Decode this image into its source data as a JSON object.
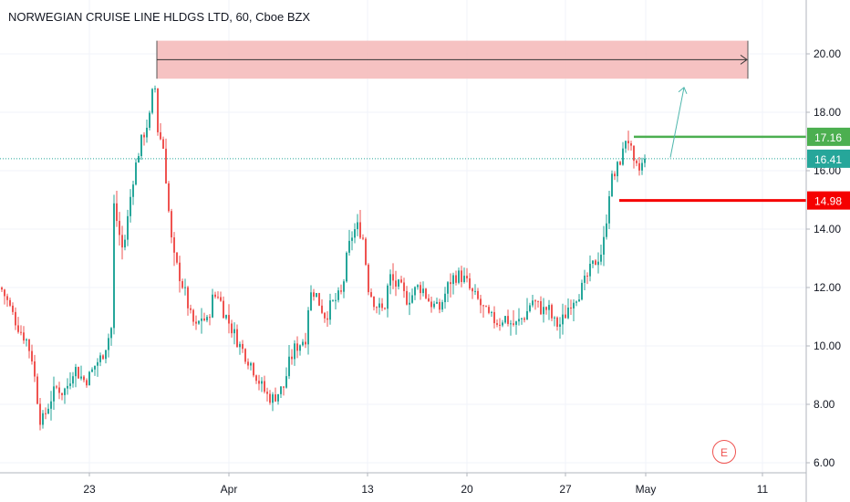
{
  "chart_data": {
    "type": "candlestick",
    "title": "NORWEGIAN CRUISE LINE HLDGS LTD, 60, Cboe BZX",
    "ylim": [
      5.8,
      21.2
    ],
    "y_ticks": [
      "6.00",
      "8.00",
      "10.00",
      "12.00",
      "14.00",
      "16.00",
      "18.00",
      "20.00"
    ],
    "x_ticks": [
      "23",
      "Apr",
      "13",
      "20",
      "27",
      "May",
      "11"
    ],
    "last_price": 16.41,
    "price_levels": [
      {
        "label": "17.16",
        "value": 17.16,
        "color": "#4caf50"
      },
      {
        "label": "14.98",
        "value": 14.98,
        "color": "#f50000"
      }
    ],
    "resistance_zone": {
      "low": 19.15,
      "high": 20.45
    },
    "projection_arrow_target": 18.85,
    "earnings_marker": "E",
    "colors": {
      "up": "#26a69a",
      "down": "#ef5350",
      "zone": "#f4b7b7",
      "last_price": "#26a69a"
    },
    "price_path": [
      [
        0,
        12.0
      ],
      [
        6,
        11.6
      ],
      [
        14,
        11.0
      ],
      [
        20,
        10.6
      ],
      [
        28,
        10.2
      ],
      [
        34,
        9.6
      ],
      [
        40,
        8.2
      ],
      [
        44,
        7.3
      ],
      [
        50,
        7.8
      ],
      [
        56,
        8.3
      ],
      [
        62,
        8.6
      ],
      [
        68,
        8.4
      ],
      [
        74,
        8.7
      ],
      [
        80,
        9.3
      ],
      [
        86,
        9.0
      ],
      [
        92,
        8.8
      ],
      [
        98,
        9.0
      ],
      [
        104,
        9.4
      ],
      [
        110,
        9.6
      ],
      [
        116,
        10.1
      ],
      [
        121,
        10.6
      ],
      [
        124,
        14.8
      ],
      [
        130,
        13.8
      ],
      [
        134,
        13.2
      ],
      [
        140,
        14.6
      ],
      [
        144,
        15.6
      ],
      [
        148,
        16.2
      ],
      [
        152,
        16.8
      ],
      [
        158,
        17.4
      ],
      [
        164,
        17.9
      ],
      [
        168,
        19.3
      ],
      [
        172,
        17.4
      ],
      [
        178,
        16.8
      ],
      [
        182,
        15.4
      ],
      [
        186,
        13.8
      ],
      [
        190,
        13.0
      ],
      [
        196,
        12.4
      ],
      [
        202,
        11.8
      ],
      [
        208,
        11.0
      ],
      [
        214,
        10.6
      ],
      [
        220,
        11.0
      ],
      [
        226,
        10.8
      ],
      [
        232,
        11.6
      ],
      [
        238,
        11.8
      ],
      [
        244,
        11.2
      ],
      [
        250,
        10.8
      ],
      [
        256,
        10.4
      ],
      [
        262,
        10.0
      ],
      [
        268,
        9.7
      ],
      [
        274,
        9.4
      ],
      [
        280,
        9.0
      ],
      [
        286,
        8.6
      ],
      [
        292,
        8.3
      ],
      [
        298,
        8.2
      ],
      [
        304,
        8.4
      ],
      [
        310,
        8.6
      ],
      [
        316,
        9.4
      ],
      [
        322,
        9.9
      ],
      [
        328,
        10.1
      ],
      [
        334,
        10.3
      ],
      [
        338,
        11.7
      ],
      [
        344,
        11.9
      ],
      [
        350,
        11.4
      ],
      [
        356,
        11.0
      ],
      [
        362,
        11.4
      ],
      [
        368,
        11.6
      ],
      [
        374,
        11.8
      ],
      [
        380,
        13.2
      ],
      [
        386,
        13.9
      ],
      [
        392,
        14.1
      ],
      [
        398,
        13.6
      ],
      [
        402,
        12.1
      ],
      [
        408,
        11.6
      ],
      [
        414,
        11.3
      ],
      [
        420,
        11.2
      ],
      [
        426,
        12.4
      ],
      [
        432,
        12.1
      ],
      [
        438,
        12.0
      ],
      [
        444,
        11.6
      ],
      [
        450,
        11.7
      ],
      [
        456,
        12.0
      ],
      [
        462,
        12.0
      ],
      [
        468,
        11.6
      ],
      [
        474,
        11.4
      ],
      [
        480,
        11.2
      ],
      [
        486,
        11.7
      ],
      [
        492,
        12.2
      ],
      [
        498,
        12.4
      ],
      [
        504,
        12.4
      ],
      [
        510,
        12.2
      ],
      [
        516,
        11.8
      ],
      [
        522,
        11.6
      ],
      [
        528,
        11.3
      ],
      [
        534,
        11.0
      ],
      [
        540,
        10.9
      ],
      [
        546,
        10.8
      ],
      [
        552,
        11.0
      ],
      [
        558,
        10.8
      ],
      [
        564,
        10.7
      ],
      [
        570,
        10.9
      ],
      [
        576,
        11.1
      ],
      [
        582,
        11.6
      ],
      [
        588,
        11.4
      ],
      [
        594,
        11.2
      ],
      [
        600,
        11.3
      ],
      [
        606,
        10.8
      ],
      [
        612,
        10.7
      ],
      [
        618,
        11.0
      ],
      [
        624,
        11.5
      ],
      [
        630,
        11.7
      ],
      [
        636,
        11.9
      ],
      [
        642,
        12.3
      ],
      [
        648,
        12.7
      ],
      [
        654,
        13.0
      ],
      [
        660,
        13.3
      ],
      [
        664,
        14.4
      ],
      [
        668,
        15.6
      ],
      [
        674,
        15.9
      ],
      [
        678,
        16.3
      ],
      [
        682,
        16.6
      ],
      [
        686,
        17.3
      ],
      [
        690,
        16.8
      ],
      [
        694,
        16.1
      ],
      [
        700,
        16.0
      ],
      [
        706,
        16.4
      ]
    ]
  }
}
